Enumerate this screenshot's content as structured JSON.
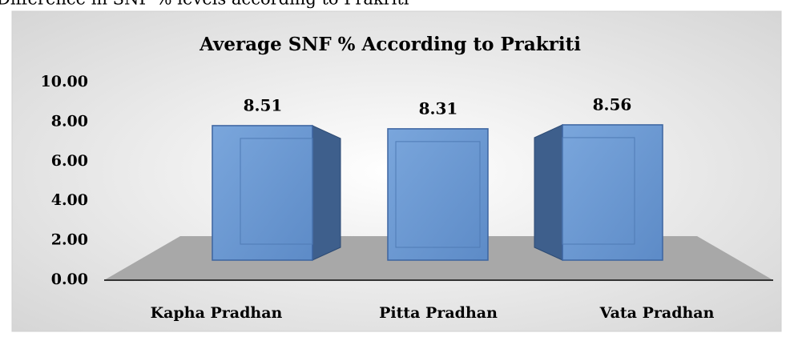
{
  "caption": "Difference in SNF % levels according to Prakriti",
  "chart_data": {
    "type": "bar3d",
    "title": "Average SNF % According to Prakriti",
    "categories": [
      "Kapha Pradhan",
      "Pitta Pradhan",
      "Vata Pradhan"
    ],
    "values": [
      8.51,
      8.31,
      8.56
    ],
    "color": "#6b98d1",
    "ylim": [
      0,
      10
    ],
    "yticks": [
      {
        "value": 0,
        "label": "0.00"
      },
      {
        "value": 2,
        "label": "2.00"
      },
      {
        "value": 4,
        "label": "4.00"
      },
      {
        "value": 6,
        "label": "6.00"
      },
      {
        "value": 8,
        "label": "8.00"
      },
      {
        "value": 10,
        "label": "10.00"
      }
    ],
    "grid": false
  }
}
